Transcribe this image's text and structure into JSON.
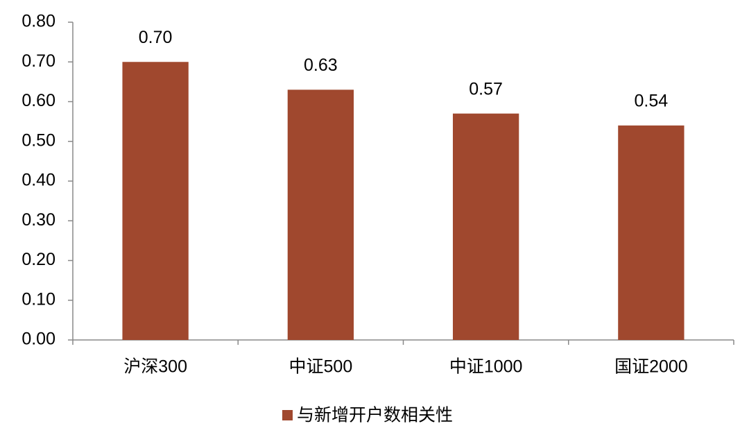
{
  "chart_data": {
    "type": "bar",
    "categories": [
      "沪深300",
      "中证500",
      "中证1000",
      "国证2000"
    ],
    "series": [
      {
        "name": "与新增开户数相关性",
        "color": "#a0482e",
        "values": [
          0.7,
          0.63,
          0.57,
          0.54
        ],
        "value_labels": [
          "0.70",
          "0.63",
          "0.57",
          "0.54"
        ]
      }
    ],
    "ylim": [
      0,
      0.8
    ],
    "yticks": [
      {
        "value": 0,
        "label": "0.00"
      },
      {
        "value": 0.1,
        "label": "0.10"
      },
      {
        "value": 0.2,
        "label": "0.20"
      },
      {
        "value": 0.3,
        "label": "0.30"
      },
      {
        "value": 0.4,
        "label": "0.40"
      },
      {
        "value": 0.5,
        "label": "0.50"
      },
      {
        "value": 0.6,
        "label": "0.60"
      },
      {
        "value": 0.7,
        "label": "0.70"
      },
      {
        "value": 0.8,
        "label": "0.80"
      }
    ],
    "grid": false,
    "legend": "bottom"
  }
}
